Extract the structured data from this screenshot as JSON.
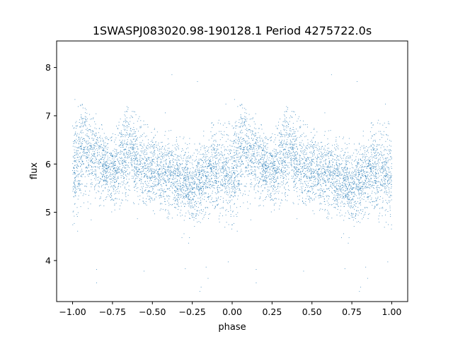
{
  "chart_data": {
    "type": "scatter",
    "title": "1SWASPJ083020.98-190128.1 Period 4275722.0s",
    "xlabel": "phase",
    "ylabel": "flux",
    "xlim": [
      -1.1,
      1.1
    ],
    "ylim": [
      3.15,
      8.55
    ],
    "x_ticks": [
      -1.0,
      -0.75,
      -0.5,
      -0.25,
      0.0,
      0.25,
      0.5,
      0.75,
      1.0
    ],
    "x_tick_labels": [
      "−1.00",
      "−0.75",
      "−0.50",
      "−0.25",
      "0.00",
      "0.25",
      "0.50",
      "0.75",
      "1.00"
    ],
    "y_ticks": [
      4,
      5,
      6,
      7,
      8
    ],
    "y_tick_labels": [
      "4",
      "5",
      "6",
      "7",
      "8"
    ],
    "grid": false,
    "legend": "none",
    "marker_color": "#1f77b4",
    "series": [
      {
        "points_per_phase_cycle": 3600,
        "phase_range": [
          -1.0,
          1.0
        ],
        "flux_envelope": {
          "phase": [
            0.0,
            0.03,
            0.06,
            0.1,
            0.15,
            0.2,
            0.25,
            0.3,
            0.35,
            0.4,
            0.45,
            0.5,
            0.55,
            0.6,
            0.65,
            0.7,
            0.75,
            0.8,
            0.85,
            0.9,
            0.95,
            1.0
          ],
          "mean": [
            5.8,
            6.0,
            6.4,
            6.2,
            6.1,
            6.0,
            5.8,
            6.0,
            6.3,
            6.1,
            5.9,
            5.9,
            5.8,
            5.8,
            5.7,
            5.7,
            5.5,
            5.6,
            5.8,
            5.9,
            5.8,
            5.8
          ],
          "upper": [
            7.0,
            7.1,
            7.1,
            7.0,
            6.9,
            6.6,
            6.5,
            6.8,
            7.1,
            6.9,
            6.8,
            6.6,
            6.5,
            6.6,
            6.6,
            6.4,
            6.3,
            6.4,
            6.7,
            6.8,
            6.7,
            6.8
          ],
          "lower": [
            4.8,
            5.0,
            5.3,
            5.2,
            5.2,
            5.1,
            5.0,
            5.2,
            5.3,
            5.3,
            5.1,
            5.1,
            5.1,
            5.0,
            5.0,
            4.9,
            4.8,
            4.9,
            5.0,
            5.0,
            4.8,
            4.8
          ]
        },
        "outlier_range": [
          3.3,
          8.3
        ]
      }
    ]
  }
}
